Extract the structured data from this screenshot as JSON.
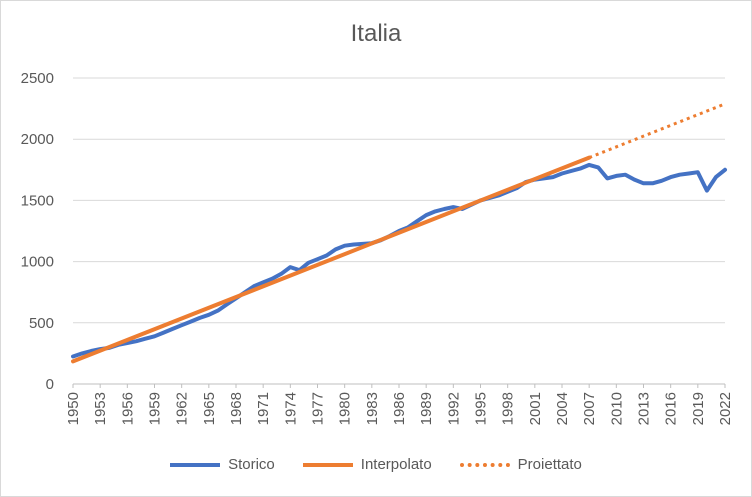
{
  "chart_data": {
    "type": "line",
    "title": "Italia",
    "xlabel": "",
    "ylabel": "",
    "ylim": [
      0,
      2500
    ],
    "yticks": [
      0,
      500,
      1000,
      1500,
      2000,
      2500
    ],
    "xlim": [
      1950,
      2022
    ],
    "xticks": [
      1950,
      1953,
      1956,
      1959,
      1962,
      1965,
      1968,
      1971,
      1974,
      1977,
      1980,
      1983,
      1986,
      1989,
      1992,
      1995,
      1998,
      2001,
      2004,
      2007,
      2010,
      2013,
      2016,
      2019,
      2022
    ],
    "grid": true,
    "legend_position": "bottom",
    "series": [
      {
        "name": "Storico",
        "color": "#4472c4",
        "style": "solid",
        "x": [
          1950,
          1951,
          1952,
          1953,
          1954,
          1955,
          1956,
          1957,
          1958,
          1959,
          1960,
          1961,
          1962,
          1963,
          1964,
          1965,
          1966,
          1967,
          1968,
          1969,
          1970,
          1971,
          1972,
          1973,
          1974,
          1975,
          1976,
          1977,
          1978,
          1979,
          1980,
          1981,
          1982,
          1983,
          1984,
          1985,
          1986,
          1987,
          1988,
          1989,
          1990,
          1991,
          1992,
          1993,
          1994,
          1995,
          1996,
          1997,
          1998,
          1999,
          2000,
          2001,
          2002,
          2003,
          2004,
          2005,
          2006,
          2007,
          2008,
          2009,
          2010,
          2011,
          2012,
          2013,
          2014,
          2015,
          2016,
          2017,
          2018,
          2019,
          2020,
          2021,
          2022
        ],
        "values": [
          225,
          250,
          270,
          285,
          295,
          320,
          335,
          350,
          370,
          390,
          420,
          450,
          480,
          510,
          540,
          565,
          600,
          650,
          700,
          750,
          800,
          830,
          860,
          900,
          955,
          930,
          990,
          1020,
          1050,
          1100,
          1130,
          1140,
          1145,
          1150,
          1175,
          1210,
          1250,
          1280,
          1330,
          1380,
          1410,
          1430,
          1445,
          1430,
          1465,
          1500,
          1520,
          1540,
          1570,
          1600,
          1650,
          1670,
          1680,
          1690,
          1720,
          1740,
          1760,
          1790,
          1770,
          1680,
          1700,
          1710,
          1670,
          1640,
          1640,
          1660,
          1690,
          1710,
          1720,
          1730,
          1580,
          1690,
          1750
        ]
      },
      {
        "name": "Interpolato",
        "color": "#ed7d31",
        "style": "solid",
        "x": [
          1950,
          2007
        ],
        "values": [
          185,
          1850
        ]
      },
      {
        "name": "Proiettato",
        "color": "#ed7d31",
        "style": "dotted",
        "x": [
          2007,
          2022
        ],
        "values": [
          1850,
          2288
        ]
      }
    ]
  }
}
